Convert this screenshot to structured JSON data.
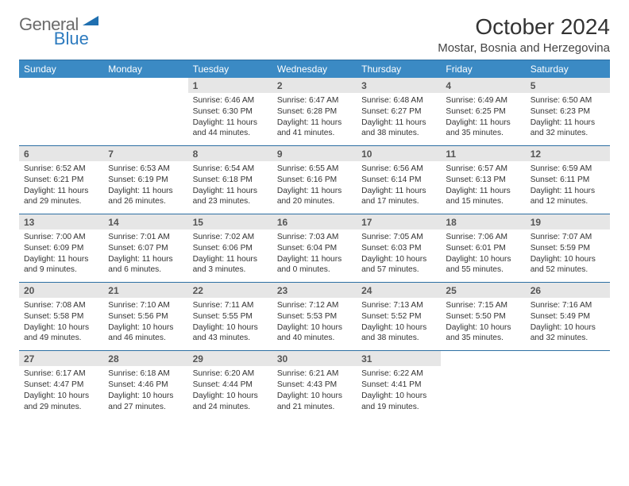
{
  "brand": {
    "word1": "General",
    "word2": "Blue"
  },
  "title": "October 2024",
  "location": "Mostar, Bosnia and Herzegovina",
  "colors": {
    "header_bg": "#3b8ac4",
    "header_fg": "#ffffff",
    "rule": "#2d6fa3",
    "daynum_bg": "#e6e6e6",
    "brand_gray": "#6b6b6b",
    "brand_blue": "#2d7bbf"
  },
  "dow": [
    "Sunday",
    "Monday",
    "Tuesday",
    "Wednesday",
    "Thursday",
    "Friday",
    "Saturday"
  ],
  "weeks": [
    [
      null,
      null,
      {
        "n": "1",
        "sr": "Sunrise: 6:46 AM",
        "ss": "Sunset: 6:30 PM",
        "dl": "Daylight: 11 hours and 44 minutes."
      },
      {
        "n": "2",
        "sr": "Sunrise: 6:47 AM",
        "ss": "Sunset: 6:28 PM",
        "dl": "Daylight: 11 hours and 41 minutes."
      },
      {
        "n": "3",
        "sr": "Sunrise: 6:48 AM",
        "ss": "Sunset: 6:27 PM",
        "dl": "Daylight: 11 hours and 38 minutes."
      },
      {
        "n": "4",
        "sr": "Sunrise: 6:49 AM",
        "ss": "Sunset: 6:25 PM",
        "dl": "Daylight: 11 hours and 35 minutes."
      },
      {
        "n": "5",
        "sr": "Sunrise: 6:50 AM",
        "ss": "Sunset: 6:23 PM",
        "dl": "Daylight: 11 hours and 32 minutes."
      }
    ],
    [
      {
        "n": "6",
        "sr": "Sunrise: 6:52 AM",
        "ss": "Sunset: 6:21 PM",
        "dl": "Daylight: 11 hours and 29 minutes."
      },
      {
        "n": "7",
        "sr": "Sunrise: 6:53 AM",
        "ss": "Sunset: 6:19 PM",
        "dl": "Daylight: 11 hours and 26 minutes."
      },
      {
        "n": "8",
        "sr": "Sunrise: 6:54 AM",
        "ss": "Sunset: 6:18 PM",
        "dl": "Daylight: 11 hours and 23 minutes."
      },
      {
        "n": "9",
        "sr": "Sunrise: 6:55 AM",
        "ss": "Sunset: 6:16 PM",
        "dl": "Daylight: 11 hours and 20 minutes."
      },
      {
        "n": "10",
        "sr": "Sunrise: 6:56 AM",
        "ss": "Sunset: 6:14 PM",
        "dl": "Daylight: 11 hours and 17 minutes."
      },
      {
        "n": "11",
        "sr": "Sunrise: 6:57 AM",
        "ss": "Sunset: 6:13 PM",
        "dl": "Daylight: 11 hours and 15 minutes."
      },
      {
        "n": "12",
        "sr": "Sunrise: 6:59 AM",
        "ss": "Sunset: 6:11 PM",
        "dl": "Daylight: 11 hours and 12 minutes."
      }
    ],
    [
      {
        "n": "13",
        "sr": "Sunrise: 7:00 AM",
        "ss": "Sunset: 6:09 PM",
        "dl": "Daylight: 11 hours and 9 minutes."
      },
      {
        "n": "14",
        "sr": "Sunrise: 7:01 AM",
        "ss": "Sunset: 6:07 PM",
        "dl": "Daylight: 11 hours and 6 minutes."
      },
      {
        "n": "15",
        "sr": "Sunrise: 7:02 AM",
        "ss": "Sunset: 6:06 PM",
        "dl": "Daylight: 11 hours and 3 minutes."
      },
      {
        "n": "16",
        "sr": "Sunrise: 7:03 AM",
        "ss": "Sunset: 6:04 PM",
        "dl": "Daylight: 11 hours and 0 minutes."
      },
      {
        "n": "17",
        "sr": "Sunrise: 7:05 AM",
        "ss": "Sunset: 6:03 PM",
        "dl": "Daylight: 10 hours and 57 minutes."
      },
      {
        "n": "18",
        "sr": "Sunrise: 7:06 AM",
        "ss": "Sunset: 6:01 PM",
        "dl": "Daylight: 10 hours and 55 minutes."
      },
      {
        "n": "19",
        "sr": "Sunrise: 7:07 AM",
        "ss": "Sunset: 5:59 PM",
        "dl": "Daylight: 10 hours and 52 minutes."
      }
    ],
    [
      {
        "n": "20",
        "sr": "Sunrise: 7:08 AM",
        "ss": "Sunset: 5:58 PM",
        "dl": "Daylight: 10 hours and 49 minutes."
      },
      {
        "n": "21",
        "sr": "Sunrise: 7:10 AM",
        "ss": "Sunset: 5:56 PM",
        "dl": "Daylight: 10 hours and 46 minutes."
      },
      {
        "n": "22",
        "sr": "Sunrise: 7:11 AM",
        "ss": "Sunset: 5:55 PM",
        "dl": "Daylight: 10 hours and 43 minutes."
      },
      {
        "n": "23",
        "sr": "Sunrise: 7:12 AM",
        "ss": "Sunset: 5:53 PM",
        "dl": "Daylight: 10 hours and 40 minutes."
      },
      {
        "n": "24",
        "sr": "Sunrise: 7:13 AM",
        "ss": "Sunset: 5:52 PM",
        "dl": "Daylight: 10 hours and 38 minutes."
      },
      {
        "n": "25",
        "sr": "Sunrise: 7:15 AM",
        "ss": "Sunset: 5:50 PM",
        "dl": "Daylight: 10 hours and 35 minutes."
      },
      {
        "n": "26",
        "sr": "Sunrise: 7:16 AM",
        "ss": "Sunset: 5:49 PM",
        "dl": "Daylight: 10 hours and 32 minutes."
      }
    ],
    [
      {
        "n": "27",
        "sr": "Sunrise: 6:17 AM",
        "ss": "Sunset: 4:47 PM",
        "dl": "Daylight: 10 hours and 29 minutes."
      },
      {
        "n": "28",
        "sr": "Sunrise: 6:18 AM",
        "ss": "Sunset: 4:46 PM",
        "dl": "Daylight: 10 hours and 27 minutes."
      },
      {
        "n": "29",
        "sr": "Sunrise: 6:20 AM",
        "ss": "Sunset: 4:44 PM",
        "dl": "Daylight: 10 hours and 24 minutes."
      },
      {
        "n": "30",
        "sr": "Sunrise: 6:21 AM",
        "ss": "Sunset: 4:43 PM",
        "dl": "Daylight: 10 hours and 21 minutes."
      },
      {
        "n": "31",
        "sr": "Sunrise: 6:22 AM",
        "ss": "Sunset: 4:41 PM",
        "dl": "Daylight: 10 hours and 19 minutes."
      },
      null,
      null
    ]
  ]
}
